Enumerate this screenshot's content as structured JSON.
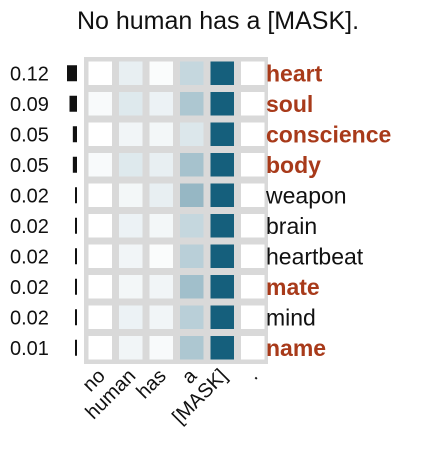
{
  "chart_data": {
    "type": "heatmap",
    "title": "No human has a [MASK].",
    "tokens": [
      "no",
      "human",
      "has",
      "a",
      "[MASK]",
      "."
    ],
    "predictions": [
      {
        "word": "heart",
        "prob": "0.12",
        "p": 0.12,
        "highlight": true,
        "weights": [
          0.0,
          0.1,
          0.02,
          0.25,
          1.0,
          0.0
        ]
      },
      {
        "word": "soul",
        "prob": "0.09",
        "p": 0.09,
        "highlight": true,
        "weights": [
          0.03,
          0.14,
          0.08,
          0.35,
          1.0,
          0.0
        ]
      },
      {
        "word": "conscience",
        "prob": "0.05",
        "p": 0.05,
        "highlight": true,
        "weights": [
          0.0,
          0.06,
          0.05,
          0.15,
          1.0,
          0.0
        ]
      },
      {
        "word": "body",
        "prob": "0.05",
        "p": 0.05,
        "highlight": true,
        "weights": [
          0.03,
          0.14,
          0.1,
          0.38,
          1.0,
          0.0
        ]
      },
      {
        "word": "weapon",
        "prob": "0.02",
        "p": 0.02,
        "highlight": false,
        "weights": [
          0.0,
          0.05,
          0.1,
          0.45,
          1.0,
          0.0
        ]
      },
      {
        "word": "brain",
        "prob": "0.02",
        "p": 0.02,
        "highlight": false,
        "weights": [
          0.0,
          0.08,
          0.05,
          0.25,
          1.0,
          0.0
        ]
      },
      {
        "word": "heartbeat",
        "prob": "0.02",
        "p": 0.02,
        "highlight": false,
        "weights": [
          0.0,
          0.06,
          0.02,
          0.3,
          1.0,
          0.0
        ]
      },
      {
        "word": "mate",
        "prob": "0.02",
        "p": 0.02,
        "highlight": true,
        "weights": [
          0.0,
          0.05,
          0.06,
          0.4,
          1.0,
          0.0
        ]
      },
      {
        "word": "mind",
        "prob": "0.02",
        "p": 0.02,
        "highlight": false,
        "weights": [
          0.0,
          0.08,
          0.06,
          0.3,
          1.0,
          0.0
        ]
      },
      {
        "word": "name",
        "prob": "0.01",
        "p": 0.01,
        "highlight": true,
        "weights": [
          0.0,
          0.06,
          0.03,
          0.35,
          1.0,
          0.0
        ]
      }
    ],
    "colors": {
      "low": "#ffffff",
      "high": "#155f7c",
      "highlight_word": "#a83a1a",
      "normal_word": "#111111",
      "grid_background": "#d9d9d9",
      "bar": "#111111"
    }
  }
}
